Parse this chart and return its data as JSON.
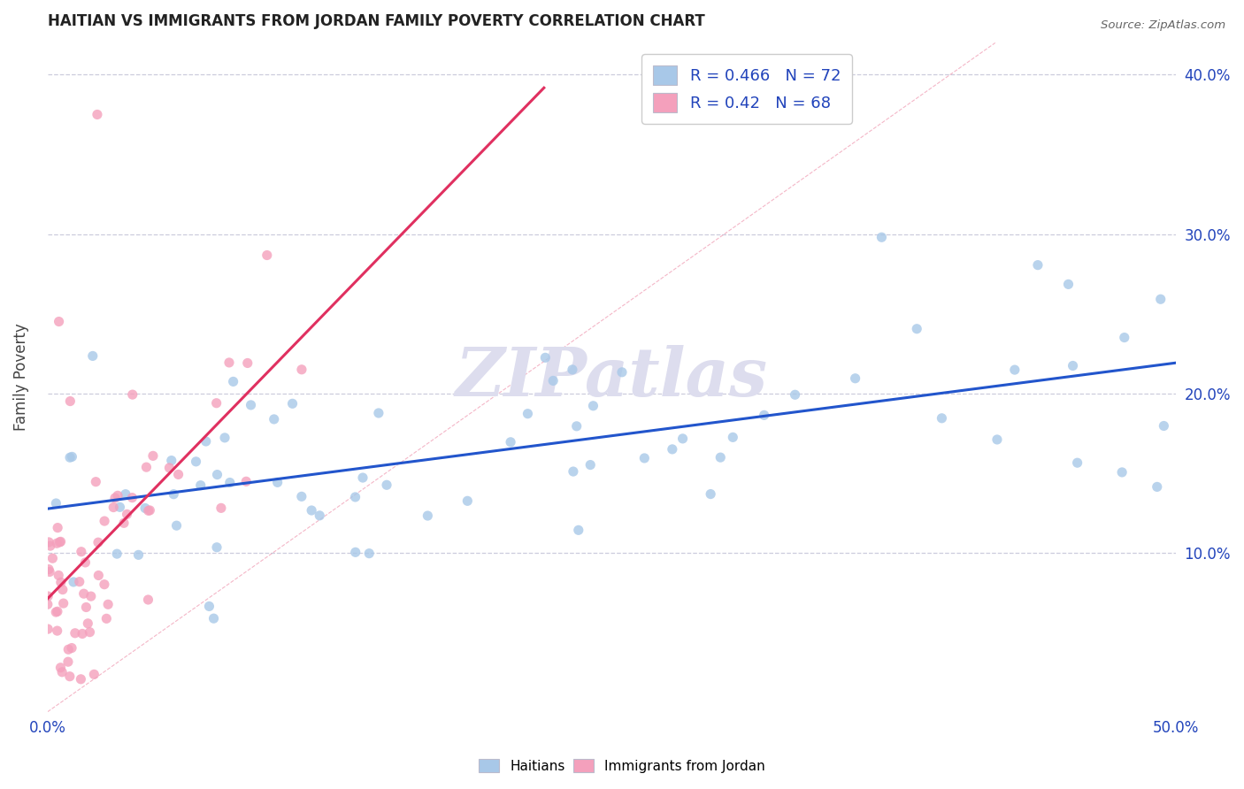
{
  "title": "HAITIAN VS IMMIGRANTS FROM JORDAN FAMILY POVERTY CORRELATION CHART",
  "source": "Source: ZipAtlas.com",
  "ylabel": "Family Poverty",
  "xlim": [
    0.0,
    0.5
  ],
  "ylim": [
    0.0,
    0.42
  ],
  "blue_R": 0.466,
  "blue_N": 72,
  "pink_R": 0.42,
  "pink_N": 68,
  "blue_color": "#a8c8e8",
  "pink_color": "#f4a0bc",
  "blue_line_color": "#2255cc",
  "pink_line_color": "#e03060",
  "background_color": "#ffffff",
  "grid_color": "#ccccdd",
  "title_color": "#222222",
  "watermark_color": "#ddddee",
  "legend_color": "#2244bb"
}
